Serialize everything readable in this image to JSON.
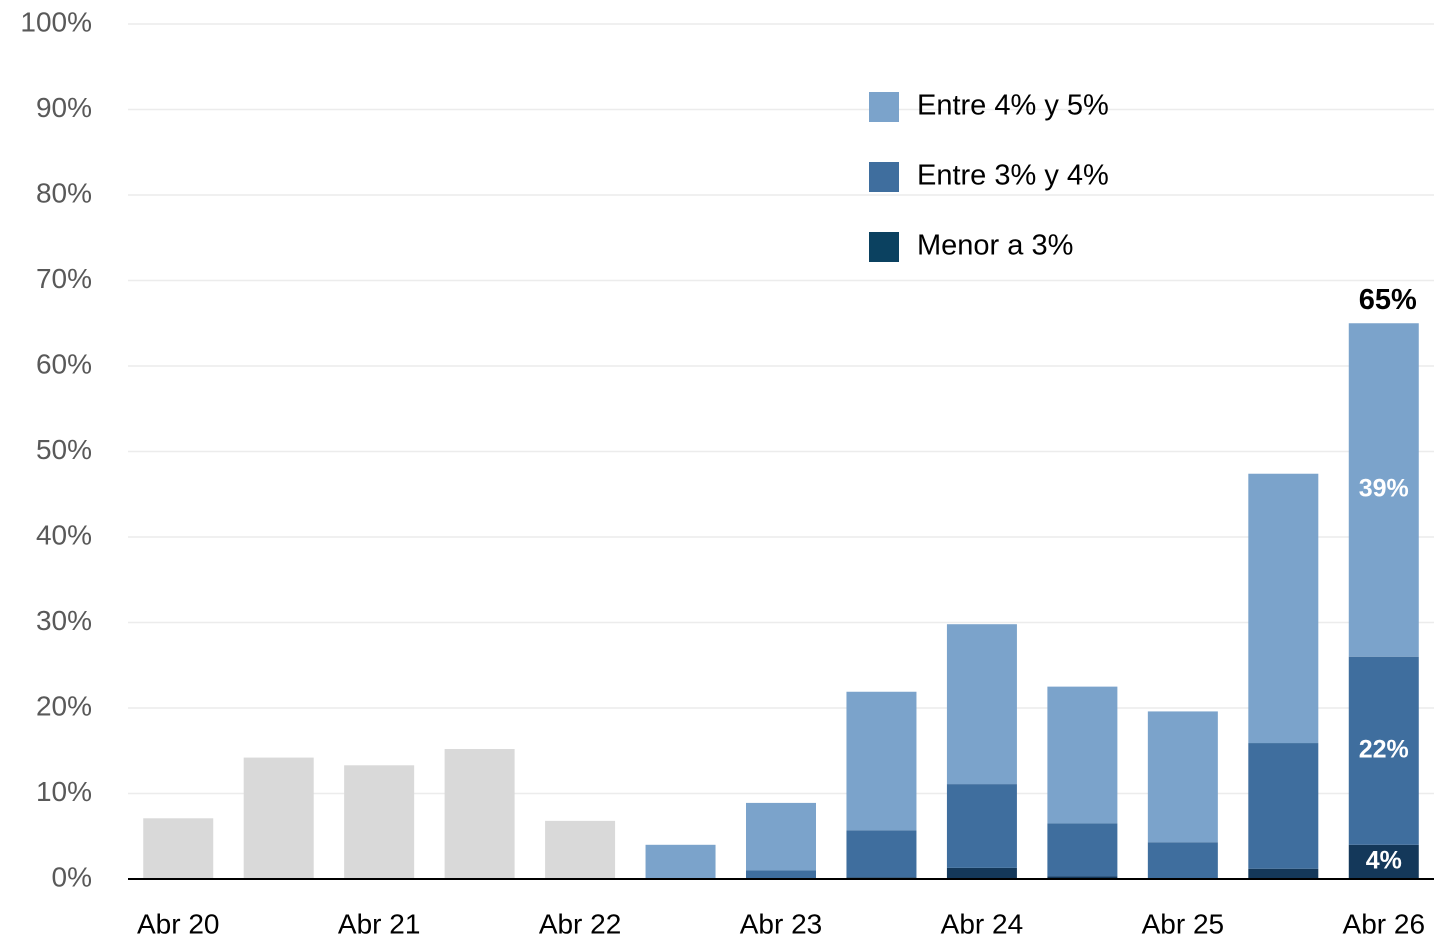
{
  "chart_data": {
    "type": "stacked_bar",
    "categories": [
      "Abr 20",
      null,
      "Abr 21",
      null,
      "Abr 22",
      null,
      "Abr 23",
      null,
      "Abr 24",
      null,
      "Abr 25",
      null,
      "Abr 26"
    ],
    "series": [
      {
        "color": "#d9d9d9",
        "values": [
          7.1,
          14.2,
          13.3,
          15.2,
          6.8,
          null,
          null,
          null,
          null,
          null,
          null,
          null,
          null
        ]
      },
      {
        "name": "Menor a 3%",
        "color": "#14385a",
        "legend_color": "#0b4160",
        "values": [
          null,
          null,
          null,
          null,
          null,
          0,
          0,
          0.2,
          1.3,
          0.3,
          0,
          1.2,
          4
        ],
        "value_labels": [
          null,
          null,
          null,
          null,
          null,
          null,
          null,
          null,
          null,
          null,
          null,
          null,
          "4%"
        ]
      },
      {
        "name": "Entre 3% y 4%",
        "color": "#3f6e9e",
        "values": [
          null,
          null,
          null,
          null,
          null,
          0,
          1.0,
          5.5,
          9.8,
          6.2,
          4.3,
          14.7,
          22
        ],
        "value_labels": [
          null,
          null,
          null,
          null,
          null,
          null,
          null,
          null,
          null,
          null,
          null,
          null,
          "22%"
        ]
      },
      {
        "name": "Entre 4% y 5%",
        "color": "#7ba3cb",
        "values": [
          null,
          null,
          null,
          null,
          null,
          4.0,
          7.9,
          16.2,
          18.7,
          16.0,
          15.3,
          31.5,
          39
        ],
        "value_labels": [
          null,
          null,
          null,
          null,
          null,
          null,
          null,
          null,
          null,
          null,
          null,
          null,
          "39%"
        ]
      }
    ],
    "total_label": {
      "index": 12,
      "text": "65%"
    },
    "ylim": [
      0,
      100
    ],
    "yticks": [
      {
        "value": 0,
        "label": "0%"
      },
      {
        "value": 10,
        "label": "10%"
      },
      {
        "value": 20,
        "label": "20%"
      },
      {
        "value": 30,
        "label": "30%"
      },
      {
        "value": 40,
        "label": "40%"
      },
      {
        "value": 50,
        "label": "50%"
      },
      {
        "value": 60,
        "label": "60%"
      },
      {
        "value": 70,
        "label": "70%"
      },
      {
        "value": 80,
        "label": "80%"
      },
      {
        "value": 90,
        "label": "90%"
      },
      {
        "value": 100,
        "label": "100%"
      }
    ],
    "grid": true,
    "legend": "upper right"
  }
}
